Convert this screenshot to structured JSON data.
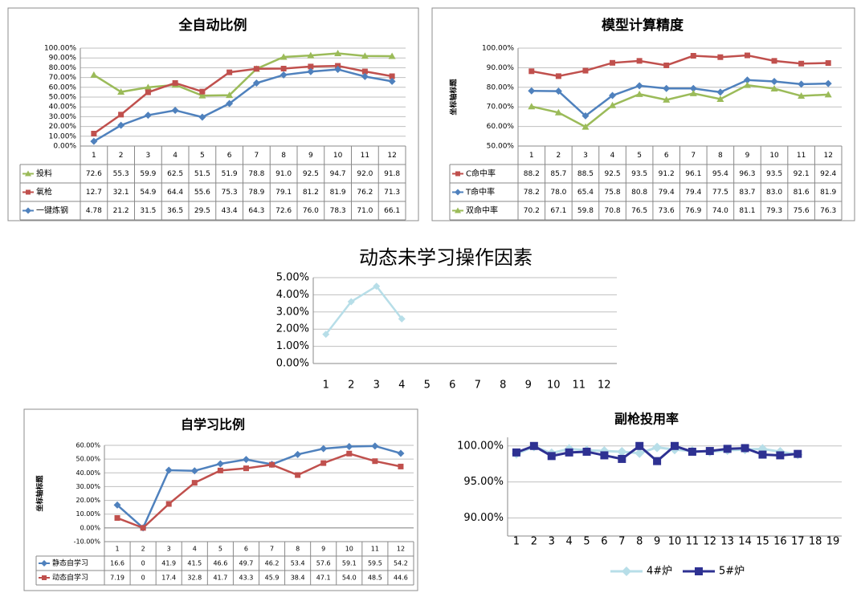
{
  "chart_data": [
    {
      "type": "line",
      "title": "全自动比例",
      "categories": [
        "1",
        "2",
        "3",
        "4",
        "5",
        "6",
        "7",
        "8",
        "9",
        "10",
        "11",
        "12"
      ],
      "ylim": [
        0,
        100
      ],
      "yticks": [
        {
          "value": 0,
          "label": "0.00%"
        },
        {
          "value": 10,
          "label": "10.00%"
        },
        {
          "value": 20,
          "label": "20.00%"
        },
        {
          "value": 30,
          "label": "30.00%"
        },
        {
          "value": 40,
          "label": "40.00%"
        },
        {
          "value": 50,
          "label": "50.00%"
        },
        {
          "value": 60,
          "label": "60.00%"
        },
        {
          "value": 70,
          "label": "70.00%"
        },
        {
          "value": 80,
          "label": "80.00%"
        },
        {
          "value": 90,
          "label": "90.00%"
        },
        {
          "value": 100,
          "label": "100.00%"
        }
      ],
      "grid": true,
      "data_table": true,
      "series": [
        {
          "name": "投料",
          "color": "#9bbb59",
          "marker": "triangle",
          "values": [
            72.6,
            55.3,
            59.9,
            62.5,
            51.5,
            51.9,
            78.8,
            91.0,
            92.5,
            94.7,
            92.0,
            91.8
          ],
          "value_labels": [
            "72.6",
            "55.3",
            "59.9",
            "62.5",
            "51.5",
            "51.9",
            "78.8",
            "91.0",
            "92.5",
            "94.7",
            "92.0",
            "91.8"
          ]
        },
        {
          "name": "氧枪",
          "color": "#c0504d",
          "marker": "square",
          "values": [
            12.7,
            32.1,
            54.9,
            64.4,
            55.6,
            75.3,
            78.9,
            79.1,
            81.2,
            81.9,
            76.2,
            71.3
          ],
          "value_labels": [
            "12.7",
            "32.1",
            "54.9",
            "64.4",
            "55.6",
            "75.3",
            "78.9",
            "79.1",
            "81.2",
            "81.9",
            "76.2",
            "71.3"
          ]
        },
        {
          "name": "一键炼钢",
          "color": "#4f81bd",
          "marker": "diamond",
          "values": [
            4.78,
            21.2,
            31.5,
            36.5,
            29.5,
            43.4,
            64.3,
            72.6,
            76.0,
            78.3,
            71.0,
            66.1
          ],
          "value_labels": [
            "4.78",
            "21.2",
            "31.5",
            "36.5",
            "29.5",
            "43.4",
            "64.3",
            "72.6",
            "76.0",
            "78.3",
            "71.0",
            "66.1"
          ]
        }
      ]
    },
    {
      "type": "line",
      "title": "模型计算精度",
      "y_label": "坐标轴标题",
      "categories": [
        "1",
        "2",
        "3",
        "4",
        "5",
        "6",
        "7",
        "8",
        "9",
        "10",
        "11",
        "12"
      ],
      "ylim": [
        50,
        100
      ],
      "yticks": [
        {
          "value": 50,
          "label": "50.00%"
        },
        {
          "value": 60,
          "label": "60.00%"
        },
        {
          "value": 70,
          "label": "70.00%"
        },
        {
          "value": 80,
          "label": "80.00%"
        },
        {
          "value": 90,
          "label": "90.00%"
        },
        {
          "value": 100,
          "label": "100.00%"
        }
      ],
      "grid": true,
      "data_table": true,
      "series": [
        {
          "name": "C命中率",
          "color": "#c0504d",
          "marker": "square",
          "values": [
            88.2,
            85.7,
            88.5,
            92.5,
            93.5,
            91.2,
            96.1,
            95.4,
            96.3,
            93.5,
            92.1,
            92.4
          ],
          "value_labels": [
            "88.2",
            "85.7",
            "88.5",
            "92.5",
            "93.5",
            "91.2",
            "96.1",
            "95.4",
            "96.3",
            "93.5",
            "92.1",
            "92.4"
          ]
        },
        {
          "name": "T命中率",
          "color": "#4f81bd",
          "marker": "diamond",
          "values": [
            78.2,
            78.0,
            65.4,
            75.8,
            80.8,
            79.4,
            79.4,
            77.5,
            83.7,
            83.0,
            81.6,
            81.9
          ],
          "value_labels": [
            "78.2",
            "78.0",
            "65.4",
            "75.8",
            "80.8",
            "79.4",
            "79.4",
            "77.5",
            "83.7",
            "83.0",
            "81.6",
            "81.9"
          ]
        },
        {
          "name": "双命中率",
          "color": "#9bbb59",
          "marker": "triangle",
          "values": [
            70.2,
            67.1,
            59.8,
            70.8,
            76.5,
            73.6,
            76.9,
            74.0,
            81.1,
            79.3,
            75.6,
            76.3
          ],
          "value_labels": [
            "70.2",
            "67.1",
            "59.8",
            "70.8",
            "76.5",
            "73.6",
            "76.9",
            "74.0",
            "81.1",
            "79.3",
            "75.6",
            "76.3"
          ]
        }
      ]
    },
    {
      "type": "line",
      "title": "动态未学习操作因素",
      "categories": [
        "1",
        "2",
        "3",
        "4",
        "5",
        "6",
        "7",
        "8",
        "9",
        "10",
        "11",
        "12"
      ],
      "ylim": [
        0,
        5
      ],
      "yticks": [
        {
          "value": 0,
          "label": "0.00%"
        },
        {
          "value": 1,
          "label": "1.00%"
        },
        {
          "value": 2,
          "label": "2.00%"
        },
        {
          "value": 3,
          "label": "3.00%"
        },
        {
          "value": 4,
          "label": "4.00%"
        },
        {
          "value": 5,
          "label": "5.00%"
        }
      ],
      "grid": true,
      "color": "#b7dee8",
      "marker": "diamond",
      "values": [
        1.7,
        3.6,
        4.5,
        2.6,
        null,
        null,
        null,
        null,
        null,
        null,
        null,
        null
      ]
    },
    {
      "type": "line",
      "title": "自学习比例",
      "y_label": "坐标轴标题",
      "categories": [
        "1",
        "2",
        "3",
        "4",
        "5",
        "6",
        "7",
        "8",
        "9",
        "10",
        "11",
        "12"
      ],
      "ylim": [
        -10,
        60
      ],
      "yticks": [
        {
          "value": -10,
          "label": "-10.00%"
        },
        {
          "value": 0,
          "label": "0.00%"
        },
        {
          "value": 10,
          "label": "10.00%"
        },
        {
          "value": 20,
          "label": "20.00%"
        },
        {
          "value": 30,
          "label": "30.00%"
        },
        {
          "value": 40,
          "label": "40.00%"
        },
        {
          "value": 50,
          "label": "50.00%"
        },
        {
          "value": 60,
          "label": "60.00%"
        }
      ],
      "grid": true,
      "data_table": true,
      "series": [
        {
          "name": "静态自学习",
          "color": "#4f81bd",
          "marker": "diamond",
          "values": [
            16.6,
            0,
            41.9,
            41.5,
            46.6,
            49.7,
            46.2,
            53.4,
            57.6,
            59.1,
            59.5,
            54.2
          ],
          "value_labels": [
            "16.6",
            "0",
            "41.9",
            "41.5",
            "46.6",
            "49.7",
            "46.2",
            "53.4",
            "57.6",
            "59.1",
            "59.5",
            "54.2"
          ]
        },
        {
          "name": "动态自学习",
          "color": "#c0504d",
          "marker": "square",
          "values": [
            7.19,
            0,
            17.4,
            32.8,
            41.7,
            43.3,
            45.9,
            38.4,
            47.1,
            54.0,
            48.5,
            44.6
          ],
          "value_labels": [
            "7.19",
            "0",
            "17.4",
            "32.8",
            "41.7",
            "43.3",
            "45.9",
            "38.4",
            "47.1",
            "54.0",
            "48.5",
            "44.6"
          ]
        }
      ]
    },
    {
      "type": "line",
      "title": "副枪投用率",
      "categories": [
        "1",
        "2",
        "3",
        "4",
        "5",
        "6",
        "7",
        "8",
        "9",
        "10",
        "11",
        "12",
        "13",
        "14",
        "15",
        "16",
        "17",
        "18",
        "19"
      ],
      "ylim": [
        87.5,
        101.2
      ],
      "yticks": [
        {
          "value": 90,
          "label": "90.00%"
        },
        {
          "value": 95,
          "label": "95.00%"
        },
        {
          "value": 100,
          "label": "100.00%"
        }
      ],
      "grid": true,
      "legend": "bottom",
      "series": [
        {
          "name": "4#炉",
          "color": "#b7dee8",
          "marker": "diamond",
          "values": [
            98.9,
            99.9,
            99.0,
            99.6,
            99.4,
            99.3,
            99.2,
            99.0,
            99.8,
            99.5,
            99.3,
            99.2,
            99.4,
            99.5,
            99.6,
            99.2,
            98.8,
            null,
            null
          ]
        },
        {
          "name": "5#炉",
          "color": "#2e3192",
          "marker": "square",
          "values": [
            99.1,
            100,
            98.6,
            99.1,
            99.2,
            98.7,
            98.2,
            100,
            97.9,
            100,
            99.2,
            99.3,
            99.6,
            99.7,
            98.8,
            98.7,
            98.9,
            null,
            null
          ]
        }
      ]
    }
  ]
}
